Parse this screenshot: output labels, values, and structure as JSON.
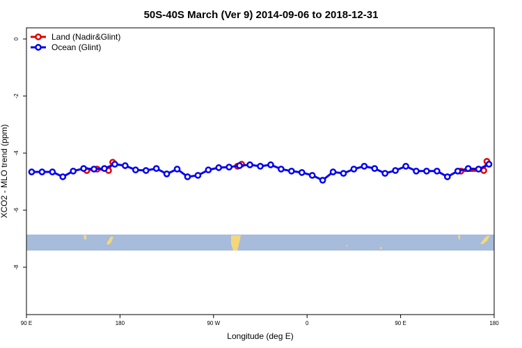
{
  "chart_data": {
    "type": "line",
    "title": "50S-40S March (Ver 9)   2014-09-06 to 2018-12-31",
    "xlabel": "Longitude (deg E)",
    "ylabel": "XCO2 - MLO trend (ppm)",
    "xlim": [
      90,
      540
    ],
    "ylim": [
      -9.66,
      0.39
    ],
    "xticks": [
      {
        "value": 90,
        "label": "90 E"
      },
      180,
      {
        "value": 270,
        "label": "90 W"
      },
      {
        "value": 360,
        "label": "0"
      },
      {
        "value": 450,
        "label": "90 E"
      },
      {
        "value": 540,
        "label": "180"
      }
    ],
    "yticks": [
      0,
      -2,
      -4,
      -6,
      -8
    ],
    "legend": "top-left",
    "series": [
      {
        "name": "Land (Nadir&Glint)",
        "color": "#e00000",
        "x": [
          148,
          158,
          169,
          173,
          233,
          293,
          297,
          400,
          508,
          530,
          533
        ],
        "values": [
          -4.61,
          -4.56,
          -4.61,
          -4.32,
          null,
          -4.46,
          -4.39,
          null,
          -4.63,
          -4.61,
          -4.29
        ]
      },
      {
        "name": "Ocean (Glint)",
        "color": "#0000ee",
        "x": [
          95,
          105,
          115,
          125,
          135,
          145,
          155,
          165,
          175,
          185,
          195,
          205,
          215,
          225,
          235,
          245,
          255,
          265,
          275,
          285,
          295,
          305,
          315,
          325,
          335,
          345,
          355,
          365,
          375,
          385,
          395,
          405,
          415,
          425,
          435,
          445,
          455,
          465,
          475,
          485,
          495,
          505,
          515,
          525,
          535
        ],
        "values": [
          -4.66,
          -4.66,
          -4.66,
          -4.83,
          -4.63,
          -4.54,
          -4.56,
          -4.54,
          -4.39,
          -4.44,
          -4.59,
          -4.61,
          -4.54,
          -4.73,
          -4.56,
          -4.83,
          -4.78,
          -4.59,
          -4.51,
          -4.49,
          -4.44,
          -4.41,
          -4.46,
          -4.41,
          -4.56,
          -4.63,
          -4.68,
          -4.78,
          -4.95,
          -4.66,
          -4.71,
          -4.56,
          -4.46,
          -4.54,
          -4.71,
          -4.61,
          -4.46,
          -4.63,
          -4.63,
          -4.63,
          -4.83,
          -4.63,
          -4.54,
          -4.56,
          -4.39
        ]
      }
    ]
  }
}
